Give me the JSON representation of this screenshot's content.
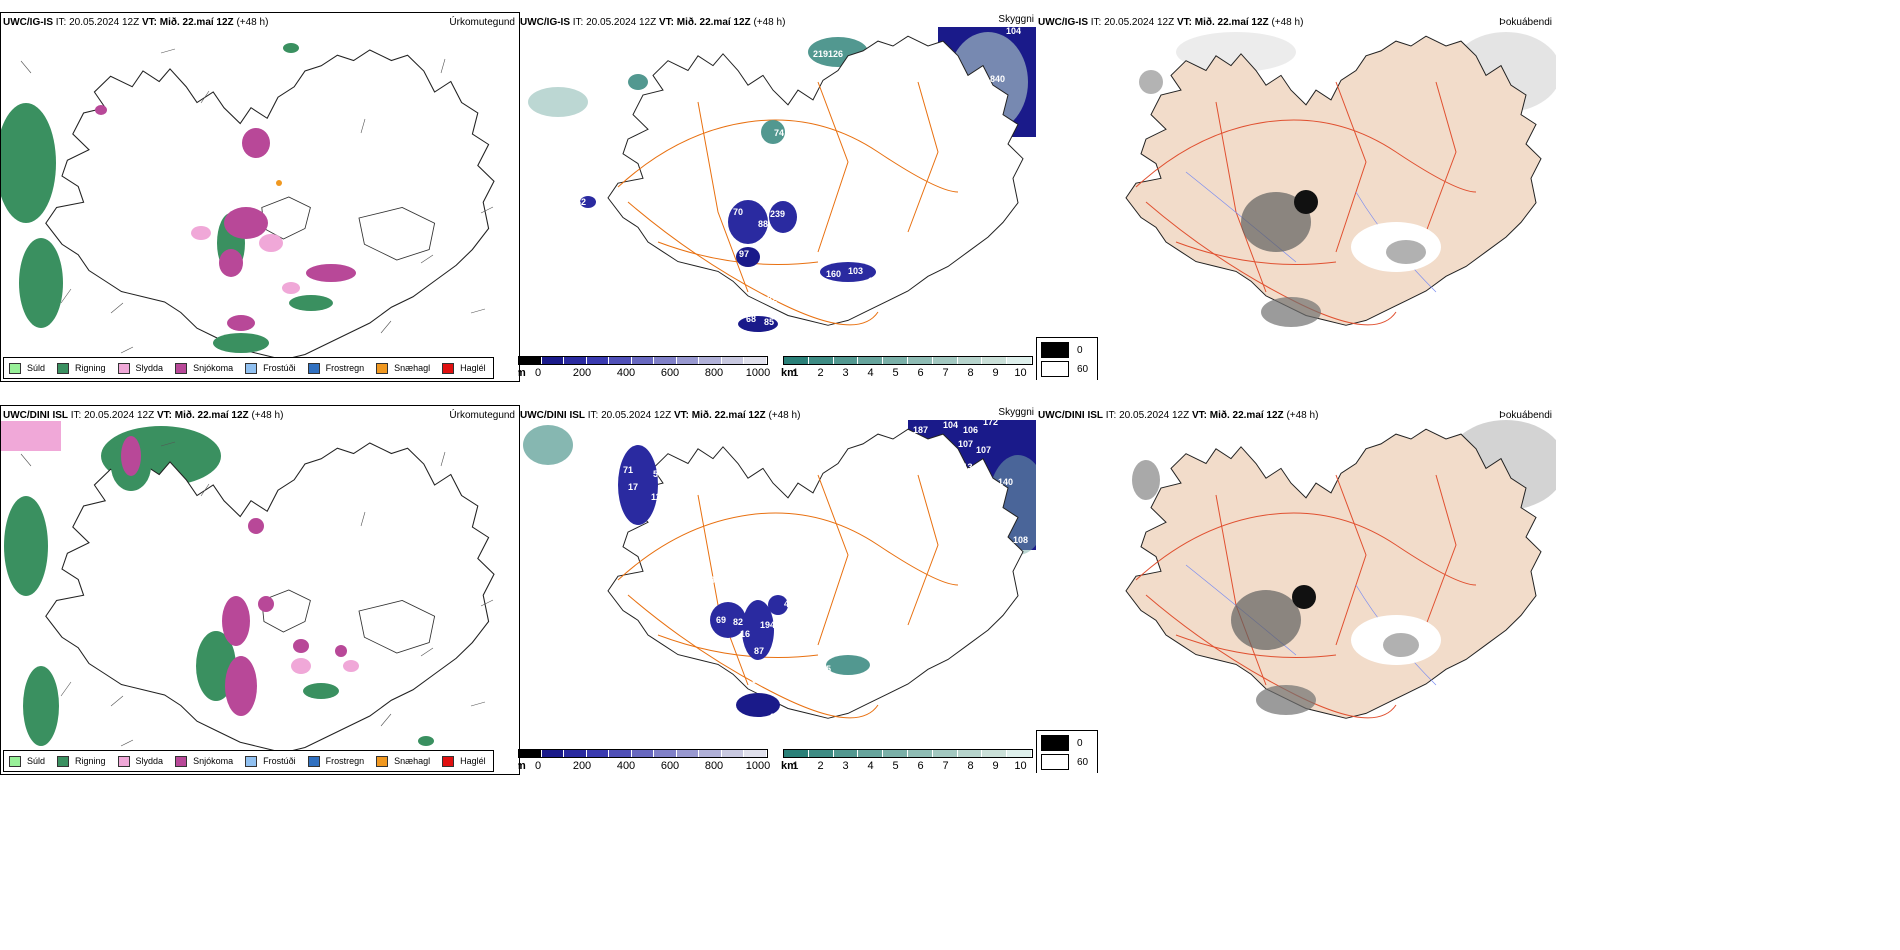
{
  "rows": [
    {
      "model": "UWC/IG-IS",
      "it": "IT: 20.05.2024 12Z",
      "vt": "VT: Mið. 22.maí 12Z",
      "lead": "(+48 h)",
      "vis_labels": [
        "104",
        "219",
        "126",
        "840",
        "74",
        "62",
        "70",
        "239",
        "88",
        "187",
        "97",
        "160",
        "103",
        "101",
        "85",
        "68",
        "82"
      ],
      "vis_label_ids": [
        "a",
        "b",
        "c",
        "d",
        "e",
        "f",
        "g",
        "h",
        "i",
        "j",
        "k",
        "l",
        "m",
        "n",
        "o",
        "p",
        "q"
      ]
    },
    {
      "model": "UWC/DINI ISL",
      "it": "IT: 20.05.2024 12Z",
      "vt": "VT: Mið. 22.maí 12Z",
      "lead": "(+48 h)",
      "vis_labels": [
        "104",
        "106",
        "187",
        "172",
        "107",
        "107",
        "113",
        "137",
        "140",
        "146",
        "108",
        "59",
        "71",
        "17",
        "11",
        "13",
        "44",
        "69",
        "82",
        "194",
        "16",
        "87",
        "72",
        "49",
        "09",
        "84",
        "55",
        "03"
      ],
      "vis_label_ids": []
    }
  ],
  "panels": {
    "precip_name": "Úrkomutegund",
    "cloud_name": "Skyggni",
    "fog_name": "Þokuábendi"
  },
  "precip_legend": [
    {
      "label": "Súld",
      "color": "#98f098"
    },
    {
      "label": "Rigning",
      "color": "#3a9060"
    },
    {
      "label": "Slydda",
      "color": "#f0a8d8"
    },
    {
      "label": "Snjókoma",
      "color": "#b84898"
    },
    {
      "label": "Frostúði",
      "color": "#90c0f0"
    },
    {
      "label": "Frostregn",
      "color": "#3070c0"
    },
    {
      "label": "Snæhagl",
      "color": "#f09820"
    },
    {
      "label": "Haglél",
      "color": "#e01010"
    }
  ],
  "height_scale": {
    "unit": "m",
    "ticks": [
      "0",
      "200",
      "400",
      "600",
      "800",
      "1000"
    ],
    "colors": [
      "#000000",
      "#1a1a8a",
      "#2a2aa0",
      "#3a3ab0",
      "#5050b8",
      "#6868c0",
      "#8080c8",
      "#9898d0",
      "#b0b0d8",
      "#c8c8e0",
      "#e0e0ec"
    ]
  },
  "vis_scale": {
    "unit": "km",
    "ticks": [
      "1",
      "2",
      "3",
      "4",
      "5",
      "6",
      "7",
      "8",
      "9",
      "10"
    ],
    "colors": [
      "#2a8078",
      "#3e8c84",
      "#529890",
      "#66a49c",
      "#7ab0a8",
      "#8ebcb4",
      "#a2c8c0",
      "#b6d4cc",
      "#cae0d8",
      "#def0ec"
    ]
  },
  "fog_legend": [
    {
      "label": "0",
      "color": "#000000"
    },
    {
      "label": "60",
      "color": "#ffffff"
    }
  ],
  "colors": {
    "land_fog": "#f2dcca",
    "road": "#e87010",
    "road_fog": "#e05030",
    "coast": "#222222"
  }
}
